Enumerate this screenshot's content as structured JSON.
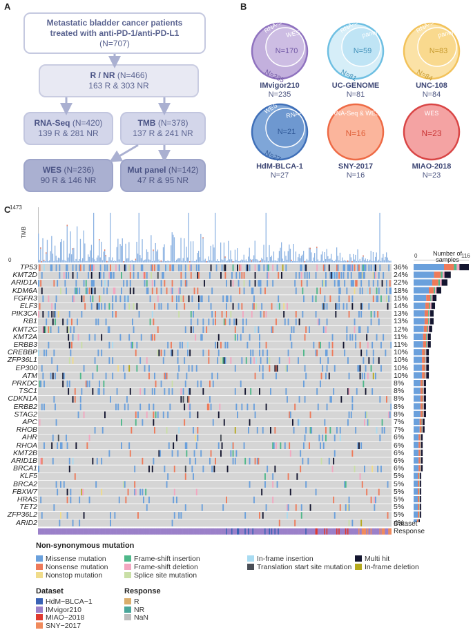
{
  "panels": {
    "a": "A",
    "b": "B",
    "c": "C"
  },
  "flow": {
    "top": {
      "line1": "Metastatic bladder cancer patients",
      "line2": "treated with anti-PD-1/anti-PD-L1",
      "line3": "(N=707)"
    },
    "rnr": {
      "title": "R / NR",
      "n": "(N=466)",
      "sub": "163 R & 303 NR"
    },
    "rnaseq": {
      "title": "RNA-Seq",
      "n": "(N=420)",
      "sub": "139 R & 281 NR"
    },
    "tmb": {
      "title": "TMB",
      "n": "(N=378)",
      "sub": "137 R & 241 NR"
    },
    "wes": {
      "title": "WES",
      "n": "(N=236)",
      "sub": "90 R & 146 NR"
    },
    "mut": {
      "title": "Mut panel",
      "n": "(N=142)",
      "sub": "47 R & 95 NR"
    }
  },
  "cohorts": [
    {
      "name": "IMvigor210",
      "n": "N=235",
      "outer": "RNA-Seq",
      "inner": "WES",
      "inner_n": "N=170",
      "outer_n": "N=235",
      "fill": "#c3b0dd",
      "stroke": "#8f72bf",
      "inner_fill": "#cdbde3",
      "text": "#6f56a4"
    },
    {
      "name": "UC-GENOME",
      "n": "N=81",
      "outer": "RNA-Seq",
      "inner": "panel",
      "inner_n": "N=59",
      "outer_n": "N=81",
      "fill": "#d6eef8",
      "stroke": "#6ebfe2",
      "inner_fill": "#bfe4f5",
      "text": "#3e8fb8"
    },
    {
      "name": "UNC-108",
      "n": "N=84",
      "outer": "RNA-Seq",
      "inner": "panel",
      "inner_n": "N=83",
      "outer_n": "N=84",
      "fill": "#fbe2a6",
      "stroke": "#f2c25a",
      "inner_fill": "#f9d98e",
      "text": "#c69a2e"
    },
    {
      "name": "HdM-BLCA-1",
      "n": "N=27",
      "outer": "WES",
      "inner": "RNA-Seq",
      "inner_n": "N=21",
      "outer_n": "N=27",
      "fill": "#7fa6d8",
      "stroke": "#3f6fb8",
      "inner_fill": "#6e98d0",
      "text": "#2e5796"
    },
    {
      "name": "SNY-2017",
      "n": "N=16",
      "outer": "RNA-Seq & WES",
      "inner": "",
      "inner_n": "N=16",
      "outer_n": "",
      "fill": "#fbb59c",
      "stroke": "#ee6a45",
      "inner_fill": "#fbb59c",
      "text": "#e0603a"
    },
    {
      "name": "MIAO-2018",
      "n": "N=23",
      "outer": "WES",
      "inner": "",
      "inner_n": "N=23",
      "outer_n": "",
      "fill": "#f4a3a3",
      "stroke": "#d94545",
      "inner_fill": "#f4a3a3",
      "text": "#c93535"
    }
  ],
  "oncoprint": {
    "tmb_label": "TMB",
    "tmb_max": "1473",
    "tmb_min": "0",
    "side_title_1": "Number of",
    "side_title_2": "samples",
    "side_min": "0",
    "side_max": "116",
    "genes": [
      "TP53",
      "KMT2D",
      "ARID1A",
      "KDM6A",
      "FGFR3",
      "ELF3",
      "PIK3CA",
      "RB1",
      "KMT2C",
      "KMT2A",
      "ERBB3",
      "CREBBP",
      "ZFP36L1",
      "EP300",
      "ATM",
      "PRKDC",
      "TSC1",
      "CDKN1A",
      "ERBB2",
      "STAG2",
      "APC",
      "RHOB",
      "AHR",
      "RHOA",
      "KMT2B",
      "ARID1B",
      "BRCA1",
      "KLF5",
      "BRCA2",
      "FBXW7",
      "HRAS",
      "TET2",
      "ZFP36L2",
      "ARID2"
    ],
    "percents": [
      "36%",
      "24%",
      "22%",
      "18%",
      "15%",
      "14%",
      "13%",
      "13%",
      "12%",
      "11%",
      "11%",
      "10%",
      "10%",
      "10%",
      "10%",
      "8%",
      "8%",
      "8%",
      "8%",
      "8%",
      "7%",
      "7%",
      "6%",
      "6%",
      "6%",
      "6%",
      "6%",
      "5%",
      "5%",
      "5%",
      "5%",
      "5%",
      "5%",
      "4%"
    ],
    "counts": [
      116,
      78,
      71,
      58,
      48,
      45,
      42,
      42,
      39,
      36,
      36,
      32,
      32,
      32,
      32,
      26,
      26,
      26,
      26,
      26,
      23,
      23,
      19,
      19,
      19,
      19,
      19,
      16,
      16,
      16,
      16,
      16,
      16,
      13
    ],
    "track_labels": [
      "Dataset",
      "Response"
    ]
  },
  "legend": {
    "mutation_title": "Non-synonymous mutation",
    "mutations": [
      {
        "label": "Missense mutation",
        "color": "#6aa0dc"
      },
      {
        "label": "Nonsense mutation",
        "color": "#ee7a5a"
      },
      {
        "label": "Nonstop mutation",
        "color": "#f0dc8a"
      },
      {
        "label": "Frame-shift insertion",
        "color": "#4fb88a"
      },
      {
        "label": "Frame-shift deletion",
        "color": "#f3a6c0"
      },
      {
        "label": "Splice site mutation",
        "color": "#c9dfa6"
      },
      {
        "label": "In-frame insertion",
        "color": "#a9dcf2"
      },
      {
        "label": "Translation start site mutation",
        "color": "#4a4f57"
      },
      {
        "label": "Multi hit",
        "color": "#141630"
      },
      {
        "label": "In-frame deletion",
        "color": "#b6aa1e"
      }
    ],
    "dataset_title": "Dataset",
    "datasets": [
      {
        "label": "HdM−BLCA−1",
        "color": "#3a62b5"
      },
      {
        "label": "IMvigor210",
        "color": "#9b80c9"
      },
      {
        "label": "MIAO−2018",
        "color": "#e03a30"
      },
      {
        "label": "SNY−2017",
        "color": "#f08a5c"
      }
    ],
    "response_title": "Response",
    "responses": [
      {
        "label": "R",
        "color": "#d9ad6b"
      },
      {
        "label": "NR",
        "color": "#4aa69a"
      },
      {
        "label": "NaN",
        "color": "#bdbdbd"
      }
    ]
  }
}
